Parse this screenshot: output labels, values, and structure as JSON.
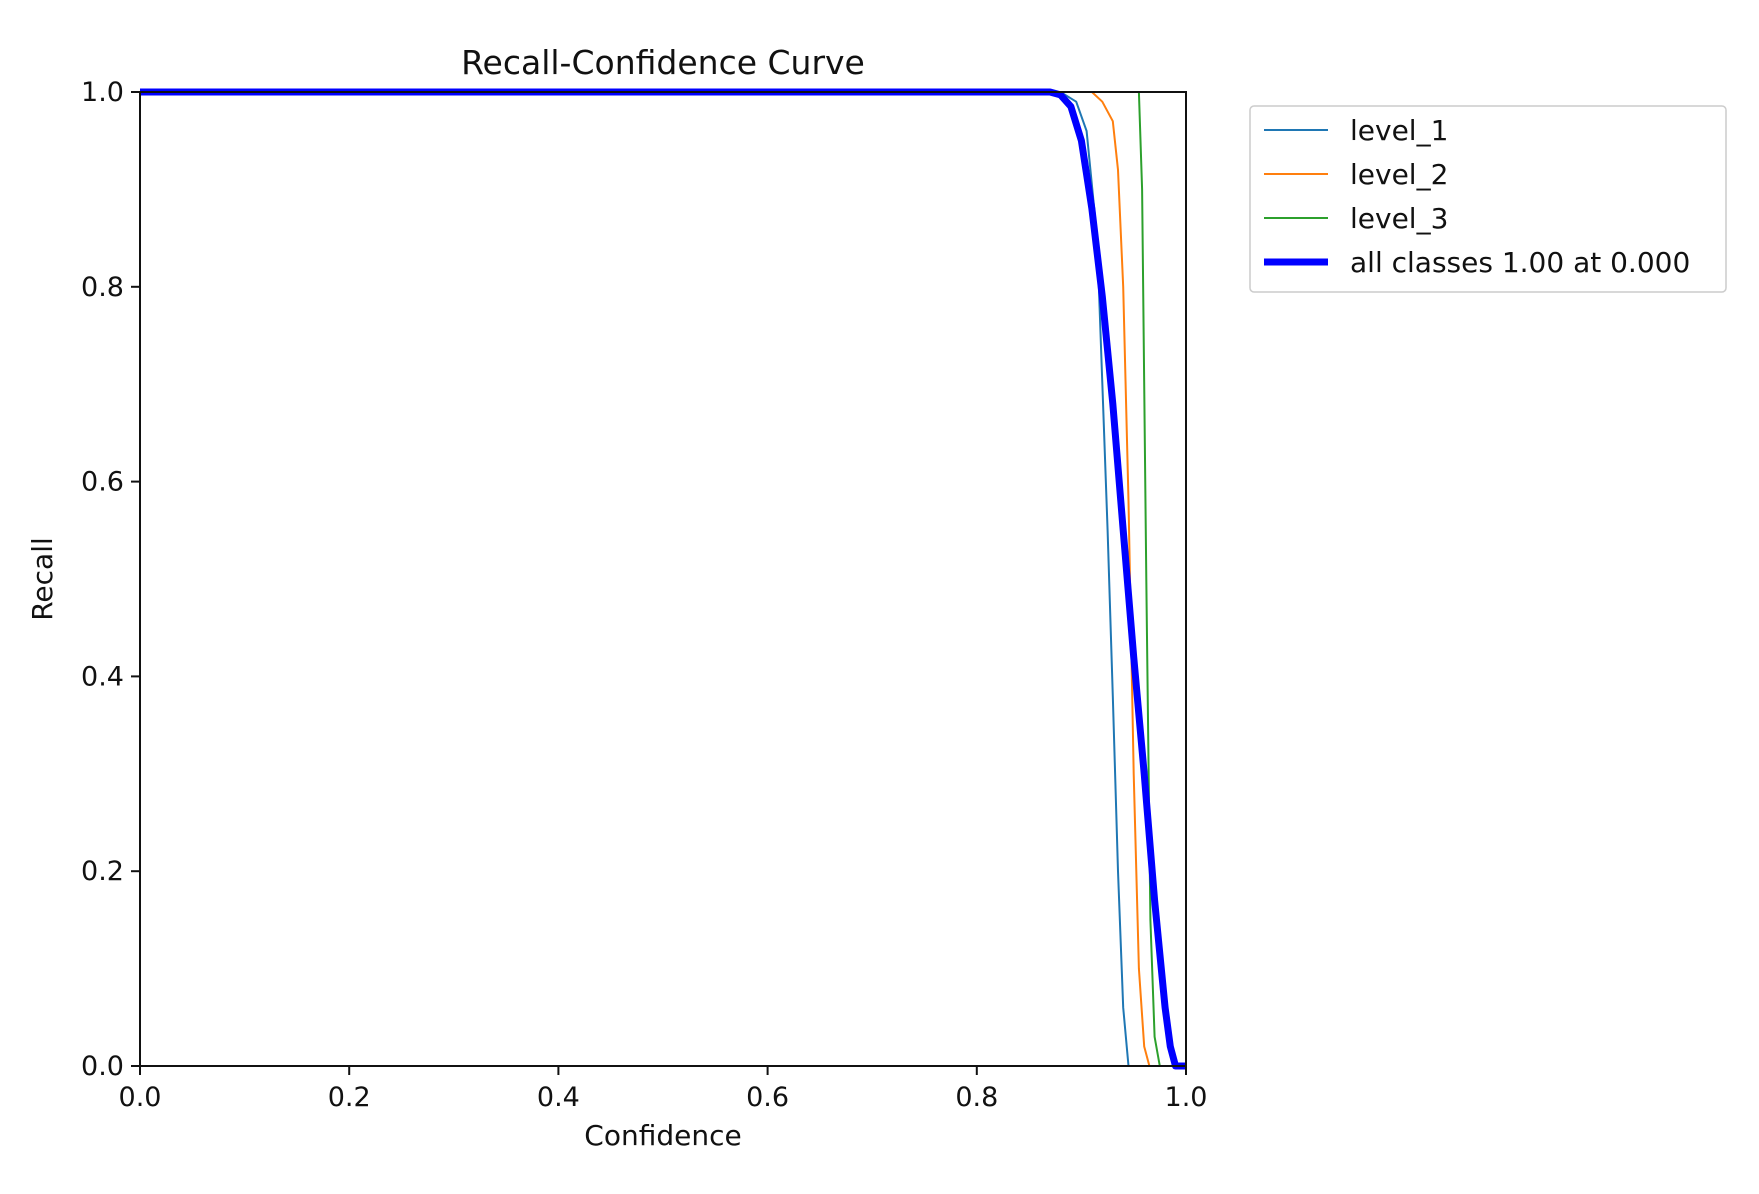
{
  "chart_data": {
    "type": "line",
    "title": "Recall-Confidence Curve",
    "xlabel": "Confidence",
    "ylabel": "Recall",
    "xlim": [
      0.0,
      1.0
    ],
    "ylim": [
      0.0,
      1.0
    ],
    "x_ticks": [
      "0.0",
      "0.2",
      "0.4",
      "0.6",
      "0.8",
      "1.0"
    ],
    "y_ticks": [
      "0.0",
      "0.2",
      "0.4",
      "0.6",
      "0.8",
      "1.0"
    ],
    "grid": false,
    "legend_position": "outside-upper-right",
    "series": [
      {
        "name": "level_1",
        "color": "#1f77b4",
        "x": [
          0.0,
          0.88,
          0.895,
          0.905,
          0.915,
          0.925,
          0.93,
          0.935,
          0.94,
          0.945,
          0.95,
          1.0
        ],
        "y": [
          1.0,
          1.0,
          0.99,
          0.96,
          0.85,
          0.55,
          0.38,
          0.2,
          0.06,
          0.0,
          0.0,
          0.0
        ]
      },
      {
        "name": "level_2",
        "color": "#ff7f0e",
        "x": [
          0.0,
          0.91,
          0.92,
          0.93,
          0.935,
          0.94,
          0.945,
          0.95,
          0.955,
          0.96,
          0.965,
          0.97,
          1.0
        ],
        "y": [
          1.0,
          1.0,
          0.99,
          0.97,
          0.92,
          0.8,
          0.58,
          0.3,
          0.1,
          0.02,
          0.0,
          0.0,
          0.0
        ]
      },
      {
        "name": "level_3",
        "color": "#2ca02c",
        "x": [
          0.0,
          0.955,
          0.958,
          0.962,
          0.966,
          0.97,
          0.975,
          0.98,
          1.0
        ],
        "y": [
          1.0,
          1.0,
          0.9,
          0.5,
          0.15,
          0.03,
          0.0,
          0.0,
          0.0
        ]
      },
      {
        "name": "all classes 1.00 at 0.000",
        "color": "#0000ff",
        "x": [
          0.0,
          0.87,
          0.88,
          0.89,
          0.9,
          0.91,
          0.92,
          0.93,
          0.94,
          0.95,
          0.96,
          0.97,
          0.98,
          0.985,
          0.99,
          1.0
        ],
        "y": [
          1.0,
          1.0,
          0.997,
          0.985,
          0.95,
          0.88,
          0.79,
          0.68,
          0.55,
          0.42,
          0.3,
          0.17,
          0.06,
          0.02,
          0.0,
          0.0
        ]
      }
    ]
  }
}
